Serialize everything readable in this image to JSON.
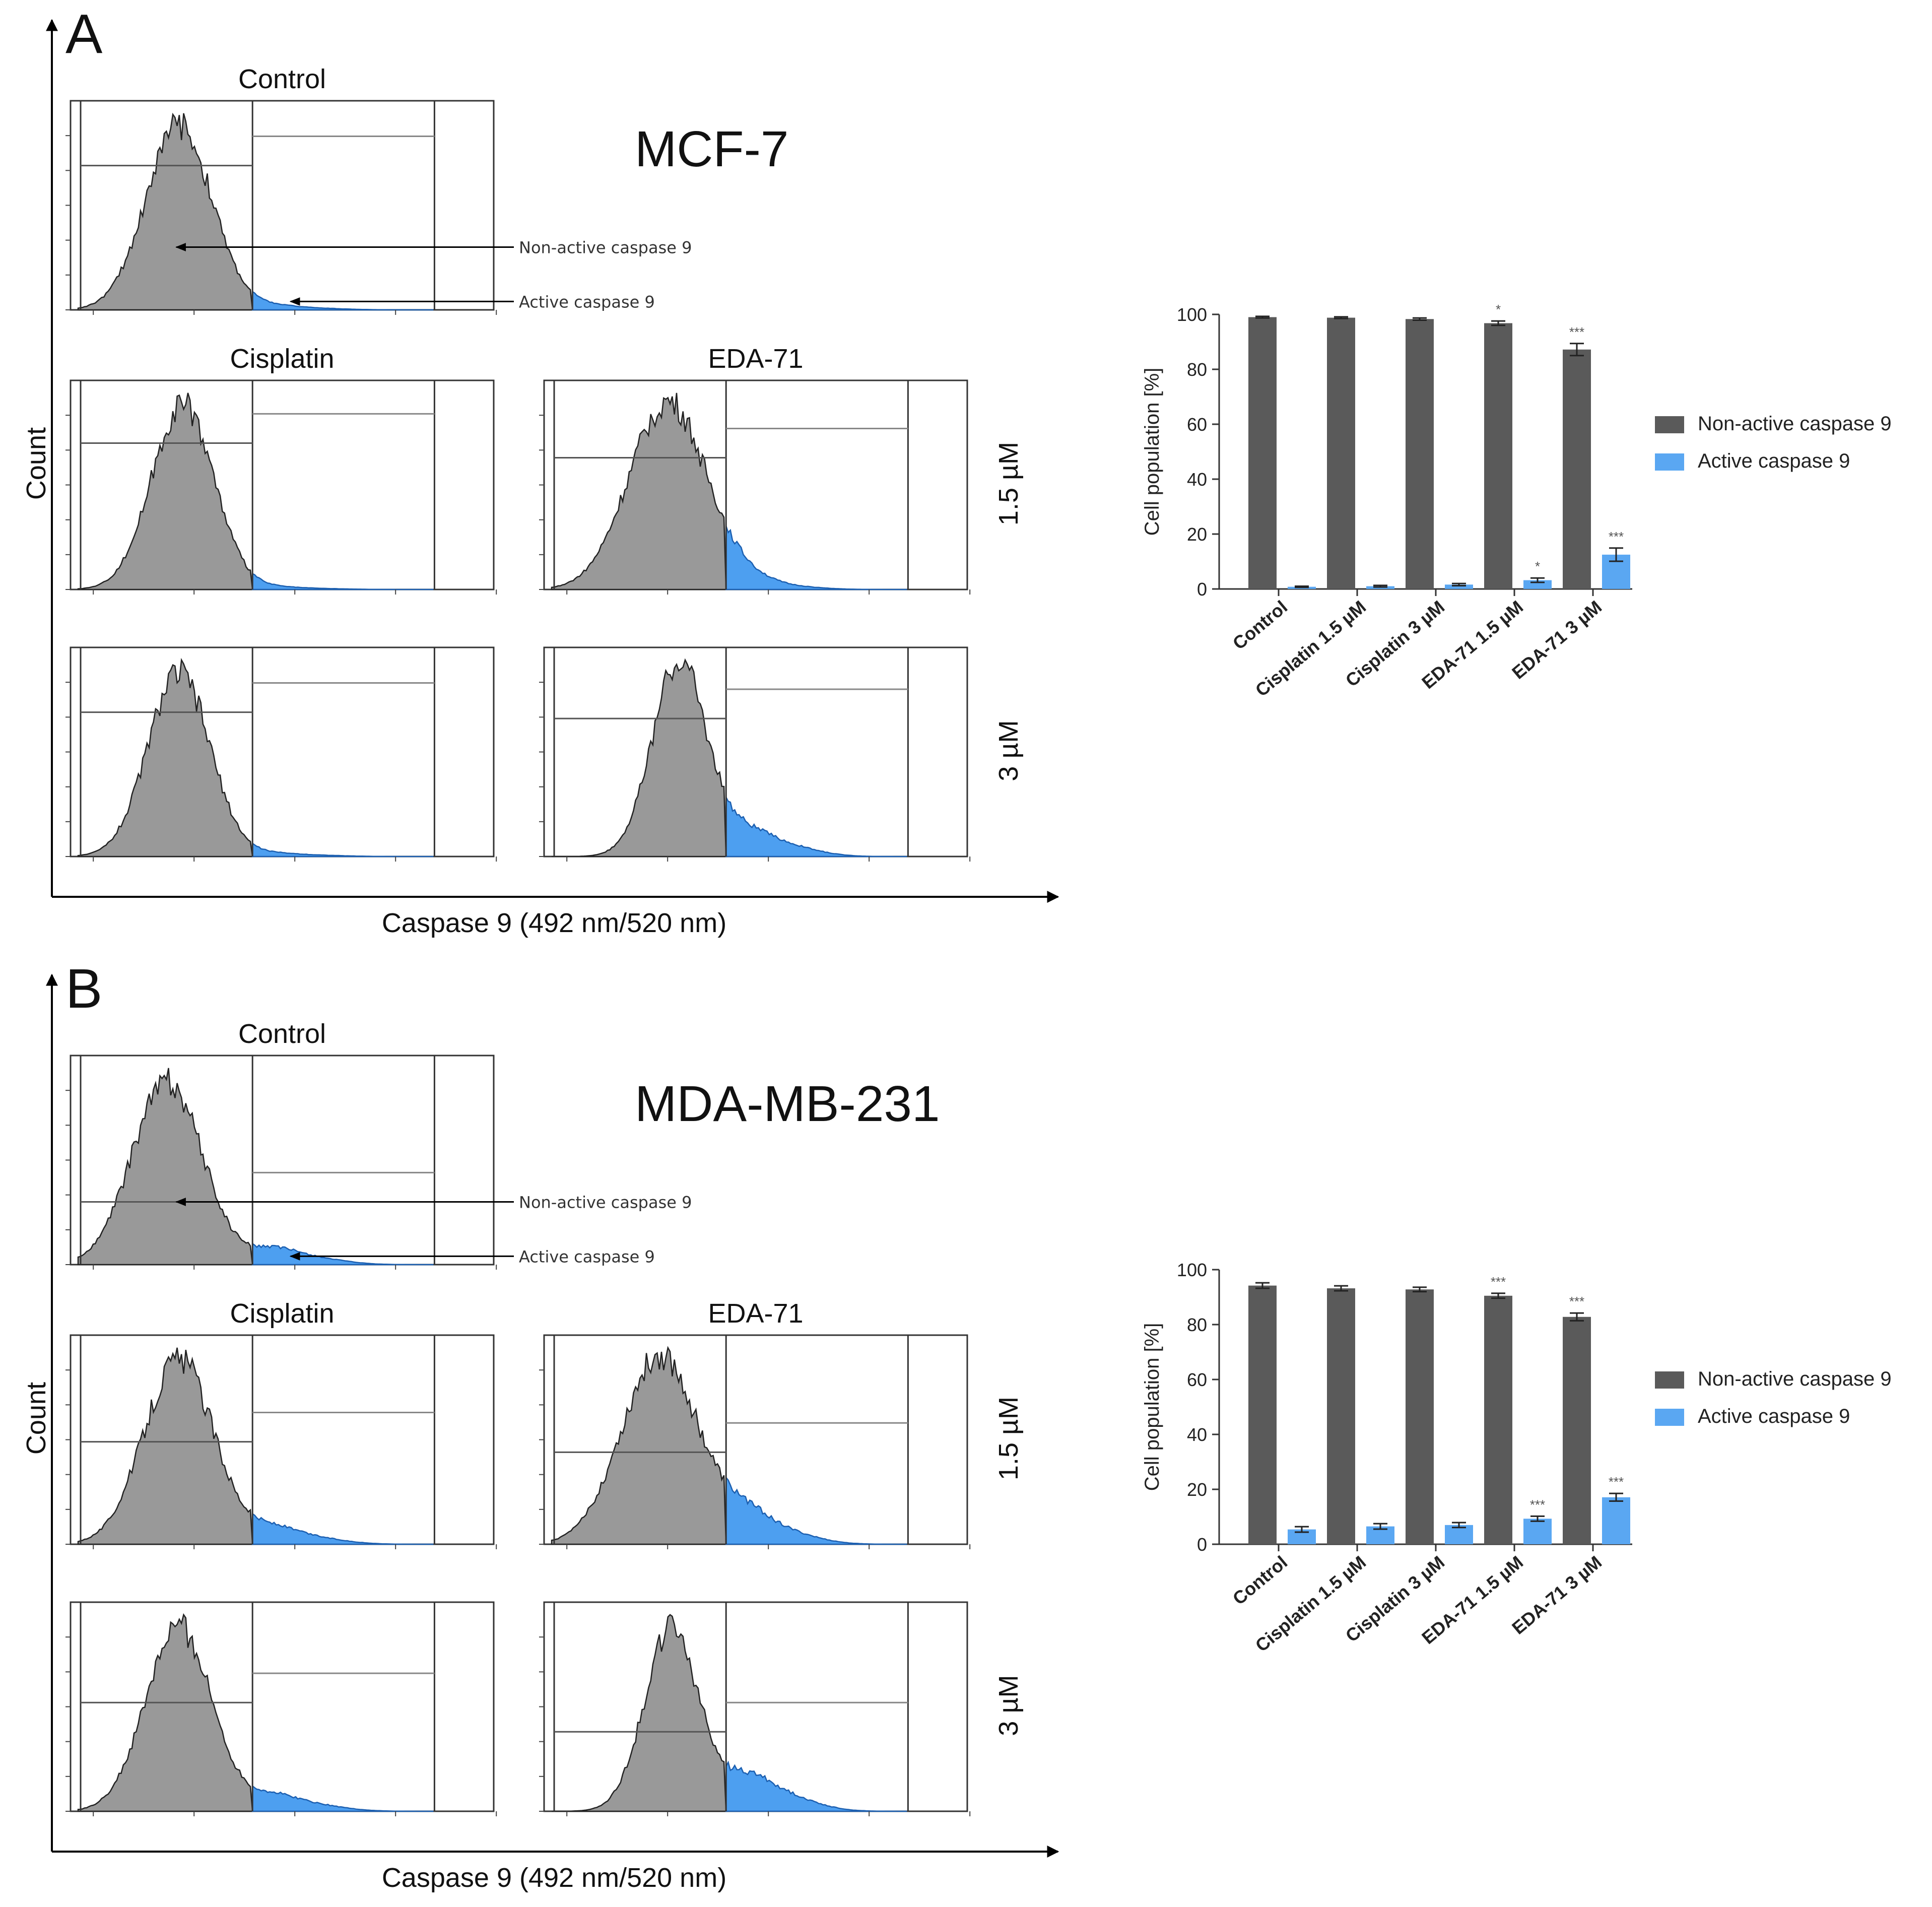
{
  "figure": {
    "panels": [
      {
        "id": "A",
        "label": "A",
        "cell_line": "MCF-7",
        "y_axis_label": "Count",
        "x_axis_label": "Caspase 9 (492 nm/520 nm)",
        "column_titles": [
          "Control",
          "Cisplatin",
          "EDA-71"
        ],
        "concentration_labels": [
          "1.5 µM",
          "3 µM"
        ],
        "annotations": [
          "Non-active caspase 9",
          "Active caspase 9"
        ],
        "histograms": {
          "control": {
            "mu": 0.26,
            "sigma": 0.085,
            "tail": 0.05
          },
          "cis_15": {
            "mu": 0.27,
            "sigma": 0.08,
            "tail": 0.03
          },
          "cis_3": {
            "mu": 0.26,
            "sigma": 0.08,
            "tail": 0.04
          },
          "eda_15": {
            "mu": 0.3,
            "sigma": 0.1,
            "tail": 0.1
          },
          "eda_3": {
            "mu": 0.33,
            "sigma": 0.07,
            "tail": 0.3
          }
        },
        "gate_levels": {
          "control": [
            0.31,
            0.47
          ],
          "cis_15": [
            0.3,
            0.46
          ],
          "cis_3": [
            0.31,
            0.47
          ],
          "eda_15": [
            0.37,
            0.55
          ],
          "eda_3": [
            0.34,
            0.5
          ]
        }
      },
      {
        "id": "B",
        "label": "B",
        "cell_line": "MDA-MB-231",
        "y_axis_label": "Count",
        "x_axis_label": "Caspase 9 (492 nm/520 nm)",
        "column_titles": [
          "Control",
          "Cisplatin",
          "EDA-71"
        ],
        "concentration_labels": [
          "1.5 µM",
          "3 µM"
        ],
        "annotations": [
          "Non-active caspase 9",
          "Active caspase 9"
        ],
        "histograms": {
          "control": {
            "mu": 0.23,
            "sigma": 0.09,
            "tail": 0.2
          },
          "cis_15": {
            "mu": 0.26,
            "sigma": 0.09,
            "tail": 0.2
          },
          "cis_3": {
            "mu": 0.26,
            "sigma": 0.085,
            "tail": 0.2
          },
          "eda_15": {
            "mu": 0.28,
            "sigma": 0.1,
            "tail": 0.35
          },
          "eda_3": {
            "mu": 0.31,
            "sigma": 0.07,
            "tail": 0.45
          }
        },
        "gate_levels": {
          "control": [
            0.7,
            0.73
          ],
          "cis_15": [
            0.51,
            0.53
          ],
          "cis_3": [
            0.48,
            0.5
          ],
          "eda_15": [
            0.56,
            0.58
          ],
          "eda_3": [
            0.62,
            0.64
          ]
        }
      }
    ]
  },
  "chart_data": [
    {
      "type": "bar",
      "title": "MCF-7",
      "ylabel": "Cell population [%]",
      "ylim": [
        0,
        100
      ],
      "yticks": [
        0,
        20,
        40,
        60,
        80,
        100
      ],
      "categories": [
        "Control",
        "Cisplatin 1.5 µM",
        "Cisplatin 3 µM",
        "EDA-71 1.5 µM",
        "EDA-71 3 µM"
      ],
      "series": [
        {
          "name": "Non-active caspase 9",
          "color": "#5a5a5a",
          "values": [
            99.0,
            98.8,
            98.3,
            96.8,
            87.2
          ],
          "errors": [
            0.3,
            0.3,
            0.4,
            0.8,
            2.2
          ],
          "significance": [
            "",
            "",
            "",
            "*",
            "***"
          ]
        },
        {
          "name": "Active caspase 9",
          "color": "#5aa7f2",
          "values": [
            0.8,
            1.0,
            1.6,
            3.2,
            12.5
          ],
          "errors": [
            0.2,
            0.3,
            0.4,
            0.8,
            2.4
          ],
          "significance": [
            "",
            "",
            "",
            "*",
            "***"
          ]
        }
      ],
      "legend_position": "right"
    },
    {
      "type": "bar",
      "title": "MDA-MB-231",
      "ylabel": "Cell population [%]",
      "ylim": [
        0,
        100
      ],
      "yticks": [
        0,
        20,
        40,
        60,
        80,
        100
      ],
      "categories": [
        "Control",
        "Cisplatin 1.5 µM",
        "Cisplatin 3 µM",
        "EDA-71 1.5 µM",
        "EDA-71 3 µM"
      ],
      "series": [
        {
          "name": "Non-active caspase 9",
          "color": "#5a5a5a",
          "values": [
            94.2,
            93.2,
            92.8,
            90.5,
            82.8
          ],
          "errors": [
            1.0,
            0.9,
            0.8,
            0.9,
            1.4
          ],
          "significance": [
            "",
            "",
            "",
            "***",
            "***"
          ]
        },
        {
          "name": "Active caspase 9",
          "color": "#5aa7f2",
          "values": [
            5.4,
            6.5,
            7.0,
            9.3,
            17.1
          ],
          "errors": [
            1.0,
            1.0,
            0.9,
            0.9,
            1.4
          ],
          "significance": [
            "",
            "",
            "",
            "***",
            "***"
          ]
        }
      ],
      "legend_position": "right"
    }
  ]
}
